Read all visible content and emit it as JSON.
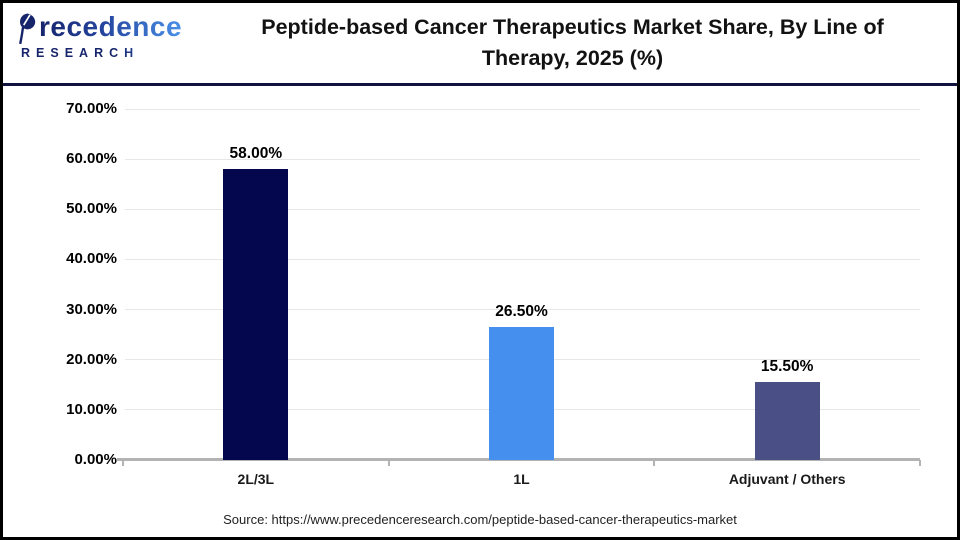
{
  "logo": {
    "brand_rest": "recedence",
    "subtitle": "RESEARCH"
  },
  "header": {
    "title_line1": "Peptide-based Cancer Therapeutics Market Share, By Line of",
    "title_line2": "Therapy, 2025 (%)"
  },
  "chart_data": {
    "type": "bar",
    "title": "Peptide-based Cancer Therapeutics Market Share, By Line of Therapy, 2025 (%)",
    "categories": [
      "2L/3L",
      "1L",
      "Adjuvant / Others"
    ],
    "values": [
      58.0,
      26.5,
      15.5
    ],
    "data_labels": [
      "58.00%",
      "26.50%",
      "15.50%"
    ],
    "bar_colors": [
      "#04074e",
      "#4590ee",
      "#4a5086"
    ],
    "xlabel": "",
    "ylabel": "",
    "ylim": [
      0,
      70
    ],
    "ytick_labels": [
      "0.00%",
      "10.00%",
      "20.00%",
      "30.00%",
      "40.00%",
      "50.00%",
      "60.00%",
      "70.00%"
    ],
    "grid": "horizontal gridlines on",
    "legend": "none"
  },
  "footer": {
    "source": "Source: https://www.precedenceresearch.com/peptide-based-cancer-therapeutics-market"
  },
  "colors": {
    "header_rule": "#12123f",
    "gridline": "#e7e7e7",
    "axis_line": "#b3b3b3",
    "logo_dark": "#16246b",
    "logo_light": "#4a90e8",
    "title_text": "#121212"
  }
}
